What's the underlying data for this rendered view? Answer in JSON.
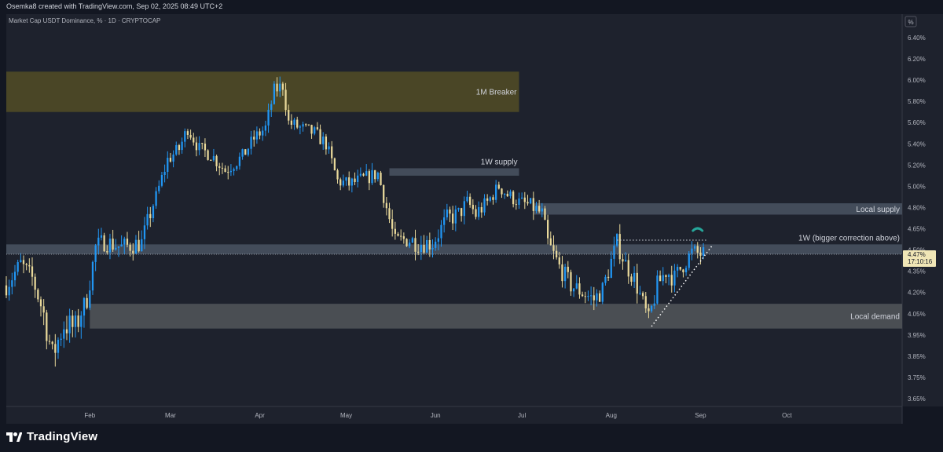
{
  "header": {
    "attribution": "Osemka8 created with TradingView.com, Sep 02, 2025 08:49 UTC+2"
  },
  "footer": {
    "logo_text": "TradingView",
    "logo_icon": "tradingview-logo-icon"
  },
  "colors": {
    "background": "#1e222d",
    "bull_candle": "#2196f3",
    "bear_candle": "#e8d89a",
    "breaker_zone": "#4e4a26",
    "supply_zone": "#46505e",
    "demand_zone": "#4e5257",
    "price_tag": "#f0e6b6"
  },
  "chart_data": {
    "type": "candlestick",
    "title": "Market Cap USDT Dominance, % · 1D · CRYPTOCAP",
    "y_unit_label": "%",
    "ylim": [
      3.57,
      6.52
    ],
    "y_ticks": [
      "6.40%",
      "6.20%",
      "6.00%",
      "5.80%",
      "5.60%",
      "5.40%",
      "5.20%",
      "5.00%",
      "4.80%",
      "4.65%",
      "4.50%",
      "4.35%",
      "4.20%",
      "4.05%",
      "3.95%",
      "3.85%",
      "3.75%",
      "3.65%"
    ],
    "y_tick_values": [
      6.4,
      6.2,
      6.0,
      5.8,
      5.6,
      5.4,
      5.2,
      5.0,
      4.8,
      4.65,
      4.5,
      4.35,
      4.2,
      4.05,
      3.95,
      3.85,
      3.75,
      3.65
    ],
    "x_range": [
      "2025-01-03",
      "2025-11-10"
    ],
    "x_ticks": [
      {
        "label": "Feb",
        "date": "2025-02-01"
      },
      {
        "label": "Mar",
        "date": "2025-03-01"
      },
      {
        "label": "Apr",
        "date": "2025-04-01"
      },
      {
        "label": "May",
        "date": "2025-05-01"
      },
      {
        "label": "Jun",
        "date": "2025-06-01"
      },
      {
        "label": "Jul",
        "date": "2025-07-01"
      },
      {
        "label": "Aug",
        "date": "2025-08-01"
      },
      {
        "label": "Sep",
        "date": "2025-09-01"
      },
      {
        "label": "Oct",
        "date": "2025-10-01"
      }
    ],
    "close_path": [
      [
        "2025-01-03",
        4.25
      ],
      [
        "2025-01-08",
        4.4
      ],
      [
        "2025-01-12",
        4.3
      ],
      [
        "2025-01-16",
        4.05
      ],
      [
        "2025-01-19",
        3.85
      ],
      [
        "2025-01-23",
        4.0
      ],
      [
        "2025-01-27",
        3.98
      ],
      [
        "2025-01-31",
        4.15
      ],
      [
        "2025-02-03",
        4.52
      ],
      [
        "2025-02-06",
        4.56
      ],
      [
        "2025-02-12",
        4.52
      ],
      [
        "2025-02-19",
        4.55
      ],
      [
        "2025-02-24",
        4.9
      ],
      [
        "2025-02-28",
        5.25
      ],
      [
        "2025-03-04",
        5.35
      ],
      [
        "2025-03-07",
        5.55
      ],
      [
        "2025-03-11",
        5.35
      ],
      [
        "2025-03-15",
        5.3
      ],
      [
        "2025-03-20",
        5.15
      ],
      [
        "2025-03-26",
        5.28
      ],
      [
        "2025-03-30",
        5.45
      ],
      [
        "2025-04-03",
        5.55
      ],
      [
        "2025-04-06",
        5.9
      ],
      [
        "2025-04-09",
        5.95
      ],
      [
        "2025-04-11",
        5.6
      ],
      [
        "2025-04-15",
        5.55
      ],
      [
        "2025-04-20",
        5.5
      ],
      [
        "2025-04-24",
        5.4
      ],
      [
        "2025-04-28",
        5.05
      ],
      [
        "2025-05-02",
        5.02
      ],
      [
        "2025-05-08",
        5.08
      ],
      [
        "2025-05-12",
        5.12
      ],
      [
        "2025-05-15",
        4.8
      ],
      [
        "2025-05-18",
        4.55
      ],
      [
        "2025-05-22",
        4.58
      ],
      [
        "2025-05-26",
        4.55
      ],
      [
        "2025-05-31",
        4.55
      ],
      [
        "2025-06-05",
        4.72
      ],
      [
        "2025-06-09",
        4.75
      ],
      [
        "2025-06-12",
        4.85
      ],
      [
        "2025-06-15",
        4.75
      ],
      [
        "2025-06-19",
        4.85
      ],
      [
        "2025-06-23",
        5.0
      ],
      [
        "2025-06-26",
        4.92
      ],
      [
        "2025-06-30",
        4.85
      ],
      [
        "2025-07-04",
        4.82
      ],
      [
        "2025-07-08",
        4.75
      ],
      [
        "2025-07-10",
        4.55
      ],
      [
        "2025-07-14",
        4.38
      ],
      [
        "2025-07-18",
        4.25
      ],
      [
        "2025-07-22",
        4.2
      ],
      [
        "2025-07-26",
        4.15
      ],
      [
        "2025-07-29",
        4.22
      ],
      [
        "2025-08-01",
        4.42
      ],
      [
        "2025-08-03",
        4.55
      ],
      [
        "2025-08-06",
        4.4
      ],
      [
        "2025-08-09",
        4.3
      ],
      [
        "2025-08-12",
        4.12
      ],
      [
        "2025-08-14",
        4.0
      ],
      [
        "2025-08-17",
        4.25
      ],
      [
        "2025-08-20",
        4.35
      ],
      [
        "2025-08-23",
        4.3
      ],
      [
        "2025-08-26",
        4.4
      ],
      [
        "2025-08-29",
        4.48
      ],
      [
        "2025-09-02",
        4.47
      ]
    ],
    "zones": [
      {
        "label": "1M Breaker",
        "from": "2025-01-03",
        "to": "2025-06-30",
        "low": 5.7,
        "high": 6.08,
        "color_key": "breaker_zone",
        "label_color": "#e3c84f"
      },
      {
        "label": "1W supply",
        "from": "2025-05-16",
        "to": "2025-06-30",
        "low": 5.1,
        "high": 5.17,
        "color_key": "supply_zone",
        "label_color": "#d1d4dc"
      },
      {
        "label": "Local supply",
        "from": "2025-07-05",
        "to": "2025-11-10",
        "low": 4.75,
        "high": 4.84,
        "color_key": "supply_zone",
        "label_color": "#d1d4dc"
      },
      {
        "label": "1W (bigger correction above)",
        "from": "2025-01-03",
        "to": "2025-11-10",
        "low": 4.47,
        "high": 4.54,
        "color_key": "supply_zone",
        "label_color": "#d1d4dc"
      },
      {
        "label": "Local demand",
        "from": "2025-02-01",
        "to": "2025-11-10",
        "low": 3.98,
        "high": 4.12,
        "color_key": "demand_zone",
        "label_color": "#d1d4dc"
      }
    ],
    "resistance_line": {
      "from": "2025-08-03",
      "to": "2025-09-03",
      "value": 4.57
    },
    "trend_line": {
      "from": "2025-08-15",
      "to": "2025-09-05",
      "low": 3.99,
      "high": 4.53
    },
    "last_price": {
      "value": 4.47,
      "label": "4.47%",
      "countdown": "17:10:16"
    }
  }
}
